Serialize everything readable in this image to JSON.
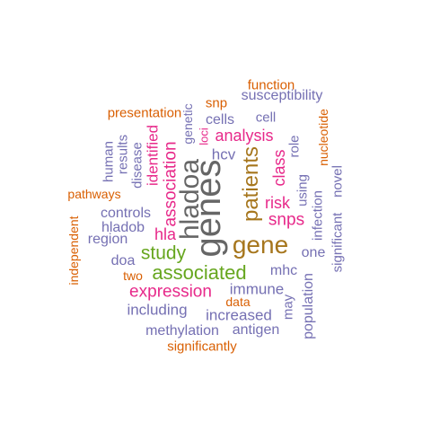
{
  "colors": {
    "orange": "#d95f02",
    "purple": "#7570b3",
    "magenta": "#e7298a",
    "green": "#66a61e",
    "gold": "#a6761d",
    "gray": "#666666",
    "dark_gold": "#8c6d1f"
  },
  "words": [
    {
      "id": "genes",
      "text": "genes",
      "color": "gray"
    },
    {
      "id": "hladoa",
      "text": "hladoa",
      "color": "gray"
    },
    {
      "id": "gene",
      "text": "gene",
      "color": "gold"
    },
    {
      "id": "patients",
      "text": "patients",
      "color": "gold"
    },
    {
      "id": "associated",
      "text": "associated",
      "color": "green"
    },
    {
      "id": "study",
      "text": "study",
      "color": "green"
    },
    {
      "id": "expression",
      "text": "expression",
      "color": "magenta"
    },
    {
      "id": "association",
      "text": "association",
      "color": "magenta"
    },
    {
      "id": "identified",
      "text": "identified",
      "color": "magenta"
    },
    {
      "id": "analysis",
      "text": "analysis",
      "color": "magenta"
    },
    {
      "id": "snps",
      "text": "snps",
      "color": "magenta"
    },
    {
      "id": "risk",
      "text": "risk",
      "color": "magenta"
    },
    {
      "id": "class",
      "text": "class",
      "color": "magenta"
    },
    {
      "id": "hla",
      "text": "hla",
      "color": "magenta"
    },
    {
      "id": "hcv",
      "text": "hcv",
      "color": "purple"
    },
    {
      "id": "immune",
      "text": "immune",
      "color": "purple"
    },
    {
      "id": "increased",
      "text": "increased",
      "color": "purple"
    },
    {
      "id": "including",
      "text": "including",
      "color": "purple"
    },
    {
      "id": "methylation",
      "text": "methylation",
      "color": "purple"
    },
    {
      "id": "antigen",
      "text": "antigen",
      "color": "purple"
    },
    {
      "id": "mhc",
      "text": "mhc",
      "color": "purple"
    },
    {
      "id": "population",
      "text": "population",
      "color": "purple"
    },
    {
      "id": "may",
      "text": "may",
      "color": "purple"
    },
    {
      "id": "controls",
      "text": "controls",
      "color": "purple"
    },
    {
      "id": "hladob",
      "text": "hladob",
      "color": "purple"
    },
    {
      "id": "region",
      "text": "region",
      "color": "purple"
    },
    {
      "id": "doa",
      "text": "doa",
      "color": "purple"
    },
    {
      "id": "cells",
      "text": "cells",
      "color": "purple"
    },
    {
      "id": "cell",
      "text": "cell",
      "color": "purple"
    },
    {
      "id": "susceptibility",
      "text": "susceptibility",
      "color": "purple"
    },
    {
      "id": "genetic",
      "text": "genetic",
      "color": "purple"
    },
    {
      "id": "disease",
      "text": "disease",
      "color": "purple"
    },
    {
      "id": "results",
      "text": "results",
      "color": "purple"
    },
    {
      "id": "human",
      "text": "human",
      "color": "purple"
    },
    {
      "id": "using",
      "text": "using",
      "color": "purple"
    },
    {
      "id": "role",
      "text": "role",
      "color": "purple"
    },
    {
      "id": "infection",
      "text": "infection",
      "color": "purple"
    },
    {
      "id": "one",
      "text": "one",
      "color": "purple"
    },
    {
      "id": "significant",
      "text": "significant",
      "color": "purple"
    },
    {
      "id": "novel",
      "text": "novel",
      "color": "purple"
    },
    {
      "id": "function",
      "text": "function",
      "color": "orange"
    },
    {
      "id": "snp",
      "text": "snp",
      "color": "orange"
    },
    {
      "id": "presentation",
      "text": "presentation",
      "color": "orange"
    },
    {
      "id": "loci",
      "text": "loci",
      "color": "magenta"
    },
    {
      "id": "nucleotide",
      "text": "nucleotide",
      "color": "orange"
    },
    {
      "id": "pathways",
      "text": "pathways",
      "color": "orange"
    },
    {
      "id": "independent",
      "text": "independent",
      "color": "orange"
    },
    {
      "id": "two",
      "text": "two",
      "color": "orange"
    },
    {
      "id": "data",
      "text": "data",
      "color": "orange"
    },
    {
      "id": "significantly",
      "text": "significantly",
      "color": "orange"
    }
  ]
}
